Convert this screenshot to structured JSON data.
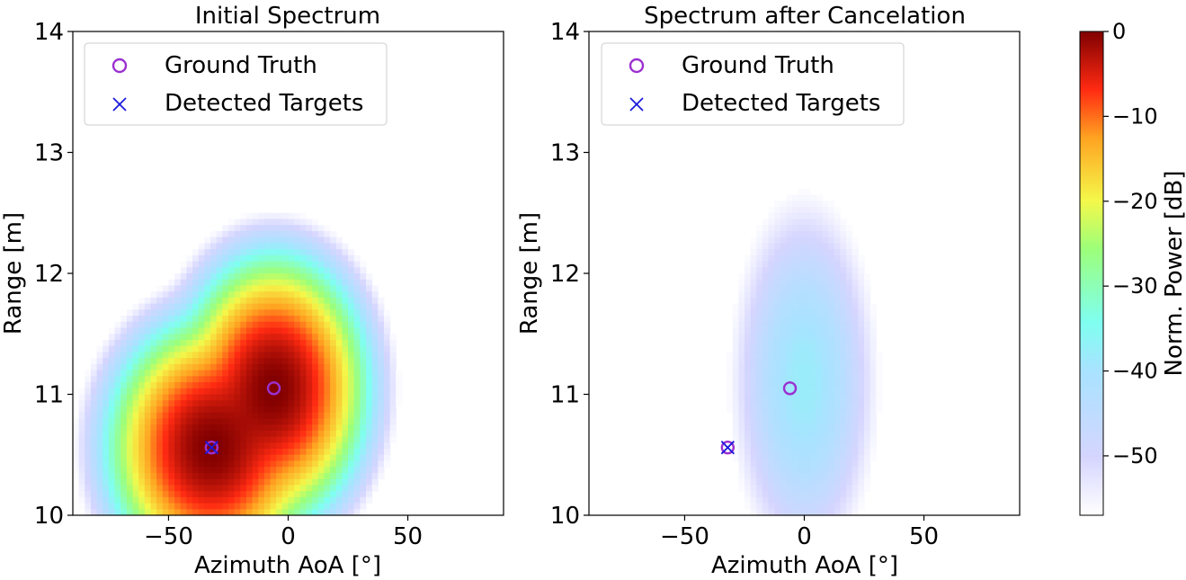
{
  "chart_data": [
    {
      "type": "heatmap",
      "title": "Initial Spectrum",
      "xlabel": "Azimuth AoA [°]",
      "ylabel": "Range [m]",
      "xlim": [
        -90,
        90
      ],
      "ylim": [
        10,
        14
      ],
      "xticks": [
        -50,
        0,
        50
      ],
      "xtick_labels": [
        "−50",
        "0",
        "50"
      ],
      "yticks": [
        10,
        11,
        12,
        13,
        14
      ],
      "ytick_labels": [
        "10",
        "11",
        "12",
        "13",
        "14"
      ],
      "grid": false,
      "legend": {
        "placement": "top-left",
        "entries": [
          {
            "label": "Ground Truth",
            "marker": "circle-open",
            "color": "#9b30d0"
          },
          {
            "label": "Detected Targets",
            "marker": "x",
            "color": "#1a1adb"
          }
        ]
      },
      "ground_truth": [
        {
          "azimuth": -32,
          "range": 10.56
        },
        {
          "azimuth": -6,
          "range": 11.05
        }
      ],
      "detected_targets": [
        {
          "azimuth": -32,
          "range": 10.56
        }
      ],
      "power_peaks_db": [
        {
          "azimuth": -32,
          "range": 10.56,
          "peak_db": 0,
          "sigma_az": 11,
          "sigma_range": 0.27
        },
        {
          "azimuth": -6,
          "range": 11.05,
          "peak_db": 0,
          "sigma_az": 10,
          "sigma_range": 0.28
        }
      ]
    },
    {
      "type": "heatmap",
      "title": "Spectrum after Cancelation",
      "xlabel": "Azimuth AoA [°]",
      "ylabel": "Range [m]",
      "xlim": [
        -90,
        90
      ],
      "ylim": [
        10,
        14
      ],
      "xticks": [
        -50,
        0,
        50
      ],
      "xtick_labels": [
        "−50",
        "0",
        "50"
      ],
      "yticks": [
        10,
        11,
        12,
        13,
        14
      ],
      "ytick_labels": [
        "10",
        "11",
        "12",
        "13",
        "14"
      ],
      "grid": false,
      "legend": {
        "placement": "top-left",
        "entries": [
          {
            "label": "Ground Truth",
            "marker": "circle-open",
            "color": "#9b30d0"
          },
          {
            "label": "Detected Targets",
            "marker": "x",
            "color": "#1a1adb"
          }
        ]
      },
      "ground_truth": [
        {
          "azimuth": -32,
          "range": 10.56
        },
        {
          "azimuth": -6,
          "range": 11.05
        }
      ],
      "detected_targets": [
        {
          "azimuth": -32,
          "range": 10.56
        }
      ],
      "power_peaks_db": [
        {
          "azimuth": 0,
          "range": 11.1,
          "peak_db": -38,
          "sigma_az": 10,
          "sigma_range": 0.5
        }
      ]
    }
  ],
  "colorbar": {
    "label": "Norm. Power [dB]",
    "range_db": [
      -57,
      0
    ],
    "ticks": [
      0,
      -10,
      -20,
      -30,
      -40,
      -50
    ],
    "tick_labels": [
      "0",
      "−10",
      "−20",
      "−30",
      "−40",
      "−50"
    ],
    "colormap": "jet-like, fading to white at low power"
  }
}
